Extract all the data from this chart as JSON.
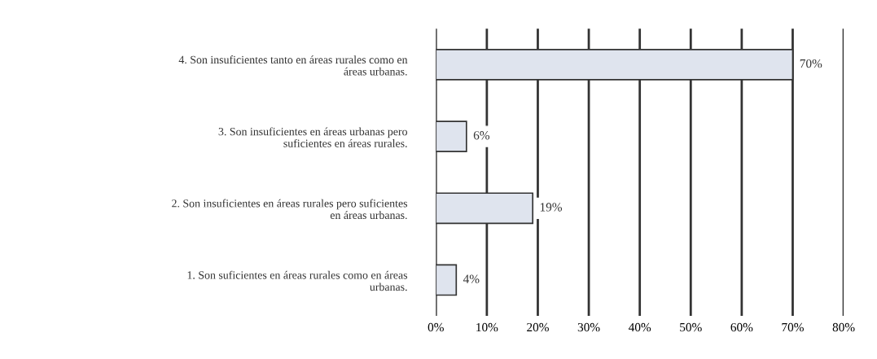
{
  "chart_data": {
    "type": "bar",
    "orientation": "horizontal",
    "categories": [
      "4. Son insuficientes tanto en áreas rurales como en\náreas urbanas.",
      "3. Son insuficientes en áreas urbanas pero\nsuficientes en áreas rurales.",
      "2. Son insuficientes en áreas rurales pero suficientes\nen áreas urbanas.",
      "1. Son suficientes en áreas rurales como en áreas\nurbanas."
    ],
    "values": [
      70,
      6,
      19,
      4
    ],
    "value_labels": [
      "70%",
      "6%",
      "19%",
      "4%"
    ],
    "color": "#dfe4ee",
    "xlim": [
      0,
      80
    ],
    "xticks": [
      {
        "value": 0,
        "label": "0%"
      },
      {
        "value": 10,
        "label": "10%"
      },
      {
        "value": 20,
        "label": "20%"
      },
      {
        "value": 30,
        "label": "30%"
      },
      {
        "value": 40,
        "label": "40%"
      },
      {
        "value": 50,
        "label": "50%"
      },
      {
        "value": 60,
        "label": "60%"
      },
      {
        "value": 70,
        "label": "70%"
      },
      {
        "value": 80,
        "label": "80%"
      }
    ],
    "grid": "x"
  }
}
